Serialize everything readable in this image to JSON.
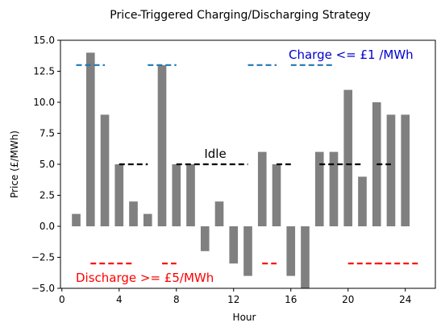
{
  "chart_data": {
    "type": "bar",
    "title": "Price-Triggered Charging/Discharging Strategy",
    "xlabel": "Hour",
    "ylabel": "Price (£/MWh)",
    "xlim": [
      -0.1,
      26.1
    ],
    "ylim": [
      -5,
      15
    ],
    "xticks": [
      0,
      4,
      8,
      12,
      16,
      20,
      24
    ],
    "yticks": [
      -5.0,
      -2.5,
      0.0,
      2.5,
      5.0,
      7.5,
      10.0,
      12.5,
      15.0
    ],
    "ytick_labels": [
      "−5.0",
      "−2.5",
      "0.0",
      "2.5",
      "5.0",
      "7.5",
      "10.0",
      "12.5",
      "15.0"
    ],
    "bar_color": "#808080",
    "x": [
      1,
      2,
      3,
      4,
      5,
      6,
      7,
      8,
      9,
      10,
      11,
      12,
      13,
      14,
      15,
      16,
      17,
      18,
      19,
      20,
      21,
      22,
      23,
      24
    ],
    "values": [
      1,
      14,
      9,
      5,
      2,
      1,
      13,
      5,
      5,
      -2,
      2,
      -3,
      -4,
      6,
      5,
      -4,
      -5,
      6,
      6,
      11,
      4,
      10,
      9,
      9
    ],
    "segments": [
      {
        "mode": "charge",
        "color": "#1f77b4",
        "y": 13,
        "ranges": [
          [
            1,
            3
          ],
          [
            6,
            8
          ],
          [
            13,
            15
          ],
          [
            16,
            19
          ]
        ]
      },
      {
        "mode": "idle",
        "color": "#000000",
        "y": 5,
        "ranges": [
          [
            4,
            6
          ],
          [
            8,
            13
          ],
          [
            15,
            16
          ],
          [
            18,
            21
          ],
          [
            22,
            23
          ]
        ]
      },
      {
        "mode": "discharge",
        "color": "#ff0000",
        "y": -3,
        "ranges": [
          [
            2,
            5
          ],
          [
            7,
            8
          ],
          [
            14,
            15
          ],
          [
            20,
            22
          ],
          [
            22,
            25
          ]
        ]
      }
    ],
    "annotations": [
      {
        "text": "Charge <= £1 /MWh",
        "color": "#0000cc"
      },
      {
        "text": "Idle",
        "color": "#000000"
      },
      {
        "text": "Discharge >= £5/MWh",
        "color": "#ff0000"
      }
    ]
  }
}
